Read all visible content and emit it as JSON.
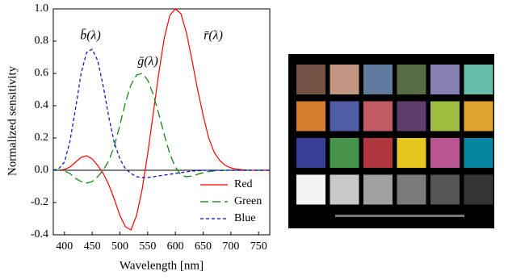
{
  "chart_data": {
    "type": "line",
    "x_label": "Wavelength [nm]",
    "y_label": "Normalized sensitivity",
    "x": [
      380,
      390,
      400,
      410,
      420,
      430,
      440,
      450,
      460,
      470,
      480,
      490,
      500,
      510,
      520,
      530,
      540,
      550,
      560,
      570,
      580,
      590,
      600,
      610,
      620,
      630,
      640,
      650,
      660,
      670,
      680,
      690,
      700,
      710,
      720,
      730,
      740,
      750,
      760,
      770
    ],
    "series": [
      {
        "name": "Red",
        "color": "#ff0000",
        "dash": "solid",
        "values": [
          0,
          0,
          0.005,
          0.02,
          0.05,
          0.08,
          0.09,
          0.07,
          0.03,
          -0.02,
          -0.09,
          -0.18,
          -0.28,
          -0.35,
          -0.37,
          -0.28,
          -0.12,
          0.1,
          0.35,
          0.6,
          0.82,
          0.96,
          1.0,
          0.97,
          0.85,
          0.68,
          0.5,
          0.34,
          0.2,
          0.11,
          0.06,
          0.03,
          0.015,
          0.007,
          0.003,
          0.001,
          0,
          0,
          0,
          0
        ]
      },
      {
        "name": "Green",
        "color": "#008000",
        "dash": "long",
        "values": [
          0,
          0,
          -0.005,
          -0.02,
          -0.05,
          -0.07,
          -0.08,
          -0.07,
          -0.04,
          0,
          0.06,
          0.15,
          0.28,
          0.42,
          0.53,
          0.59,
          0.6,
          0.56,
          0.47,
          0.35,
          0.22,
          0.1,
          0.02,
          -0.03,
          -0.04,
          -0.035,
          -0.025,
          -0.015,
          -0.008,
          -0.004,
          -0.002,
          0,
          0,
          0,
          0,
          0,
          0,
          0,
          0,
          0
        ]
      },
      {
        "name": "Blue",
        "color": "#0000cc",
        "dash": "short",
        "values": [
          0,
          0.01,
          0.05,
          0.18,
          0.38,
          0.6,
          0.73,
          0.75,
          0.68,
          0.52,
          0.33,
          0.17,
          0.07,
          0.01,
          -0.02,
          -0.04,
          -0.045,
          -0.045,
          -0.04,
          -0.035,
          -0.03,
          -0.025,
          -0.02,
          -0.015,
          -0.01,
          -0.005,
          -0.003,
          -0.001,
          0,
          0,
          0,
          0,
          0,
          0,
          0,
          0,
          0,
          0,
          0,
          0
        ]
      }
    ],
    "annotations": [
      {
        "text": "b̄(λ)"
      },
      {
        "text": "ḡ(λ)"
      },
      {
        "text": "r̄(λ)"
      }
    ],
    "xlim": [
      380,
      770
    ],
    "xticks": [
      400,
      450,
      500,
      550,
      600,
      650,
      700,
      750
    ],
    "ylim": [
      -0.4,
      1.0
    ],
    "yticks": [
      {
        "value": 1.0,
        "label": "1.0"
      },
      0.8,
      0.6,
      0.4,
      0.2,
      {
        "value": 0,
        "label": "0.0"
      },
      -0.2,
      -0.4
    ],
    "zero_line": true,
    "legend": "lower right"
  },
  "image": {
    "background": "#000000",
    "patches": [
      "#735244",
      "#c29682",
      "#627a9d",
      "#576c43",
      "#8580b1",
      "#67bdaa",
      "#d67e2c",
      "#505ba6",
      "#c15a63",
      "#5e3c6c",
      "#9dbc40",
      "#e0a32e",
      "#383d96",
      "#469449",
      "#af363c",
      "#e7c71f",
      "#bb5695",
      "#0885a1",
      "#f3f3f2",
      "#c8c8c8",
      "#a0a0a0",
      "#7a7a79",
      "#555555",
      "#343434"
    ]
  }
}
